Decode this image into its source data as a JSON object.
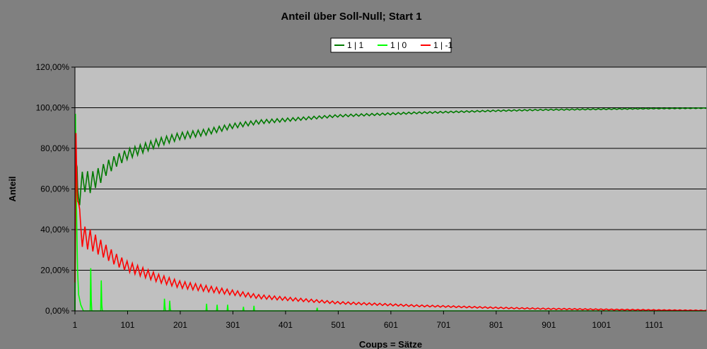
{
  "chart_data": {
    "type": "line",
    "title": "Anteil über Soll-Null; Start 1",
    "xlabel": "Coups = Sätze",
    "ylabel": "Anteil",
    "xlim": [
      1,
      1200
    ],
    "ylim": [
      0,
      1.2
    ],
    "x_ticks": [
      1,
      101,
      201,
      301,
      401,
      501,
      601,
      701,
      801,
      901,
      1001,
      1101
    ],
    "y_ticks": [
      0,
      0.2,
      0.4,
      0.6,
      0.8,
      1.0,
      1.2
    ],
    "y_tick_labels": [
      "0,00%",
      "20,00%",
      "40,00%",
      "60,00%",
      "80,00%",
      "100,00%",
      "120,00%"
    ],
    "grid": "horizontal",
    "legend_position": "top-center",
    "plot_background": "#c0c0c0",
    "series": [
      {
        "name": "1 | 1",
        "color": "#007a00",
        "x": [
          1,
          3,
          6,
          10,
          15,
          20,
          30,
          40,
          50,
          60,
          80,
          100,
          130,
          160,
          200,
          250,
          300,
          350,
          400,
          450,
          500,
          550,
          600,
          650,
          700,
          800,
          900,
          1000,
          1100,
          1200
        ],
        "values": [
          0.05,
          0.7,
          0.55,
          0.6,
          0.62,
          0.64,
          0.63,
          0.65,
          0.67,
          0.7,
          0.74,
          0.77,
          0.8,
          0.83,
          0.86,
          0.88,
          0.91,
          0.93,
          0.94,
          0.95,
          0.96,
          0.965,
          0.97,
          0.975,
          0.978,
          0.985,
          0.99,
          0.993,
          0.996,
          0.998
        ],
        "oscillation": [
          0.3,
          0.25,
          0.2,
          0.16,
          0.13,
          0.11,
          0.1,
          0.09,
          0.08,
          0.07,
          0.06,
          0.05,
          0.045,
          0.04,
          0.035,
          0.03,
          0.025,
          0.02,
          0.017,
          0.014,
          0.012,
          0.011,
          0.01,
          0.009,
          0.008,
          0.007,
          0.006,
          0.005,
          0.004,
          0.003
        ]
      },
      {
        "name": "1 | 0",
        "color": "#00ff00",
        "x": [
          1,
          2,
          4,
          6,
          8,
          12,
          17,
          25,
          30,
          31,
          32,
          33,
          34,
          35,
          50,
          51,
          52,
          53,
          54,
          100,
          170,
          171,
          172,
          173,
          180,
          181,
          182,
          183,
          250,
          251,
          252,
          270,
          271,
          272,
          290,
          291,
          292,
          320,
          321,
          322,
          340,
          341,
          342,
          460,
          461,
          462,
          1200
        ],
        "values": [
          0.0,
          0.97,
          0.5,
          0.2,
          0.08,
          0.03,
          0.0,
          0.0,
          0.0,
          0.21,
          0.05,
          0.0,
          0.0,
          0.0,
          0.0,
          0.15,
          0.03,
          0.0,
          0.0,
          0.0,
          0.0,
          0.06,
          0.02,
          0.0,
          0.0,
          0.05,
          0.01,
          0.0,
          0.0,
          0.035,
          0.0,
          0.0,
          0.03,
          0.0,
          0.0,
          0.03,
          0.0,
          0.0,
          0.02,
          0.0,
          0.0,
          0.025,
          0.0,
          0.0,
          0.015,
          0.0,
          0.0
        ]
      },
      {
        "name": "1 | -1",
        "color": "#ff0000",
        "x": [
          1,
          3,
          6,
          10,
          15,
          20,
          30,
          40,
          50,
          60,
          80,
          100,
          130,
          160,
          200,
          250,
          300,
          350,
          400,
          450,
          500,
          550,
          600,
          650,
          700,
          800,
          900,
          1000,
          1100,
          1200
        ],
        "values": [
          0.05,
          0.9,
          0.6,
          0.42,
          0.38,
          0.36,
          0.35,
          0.33,
          0.31,
          0.29,
          0.25,
          0.22,
          0.19,
          0.16,
          0.13,
          0.11,
          0.09,
          0.07,
          0.06,
          0.05,
          0.04,
          0.035,
          0.03,
          0.025,
          0.022,
          0.015,
          0.01,
          0.007,
          0.004,
          0.002
        ],
        "oscillation": [
          0.3,
          0.25,
          0.2,
          0.16,
          0.13,
          0.11,
          0.1,
          0.09,
          0.08,
          0.07,
          0.06,
          0.05,
          0.045,
          0.04,
          0.035,
          0.03,
          0.025,
          0.02,
          0.017,
          0.014,
          0.012,
          0.011,
          0.01,
          0.009,
          0.008,
          0.007,
          0.006,
          0.005,
          0.004,
          0.003
        ]
      }
    ]
  }
}
